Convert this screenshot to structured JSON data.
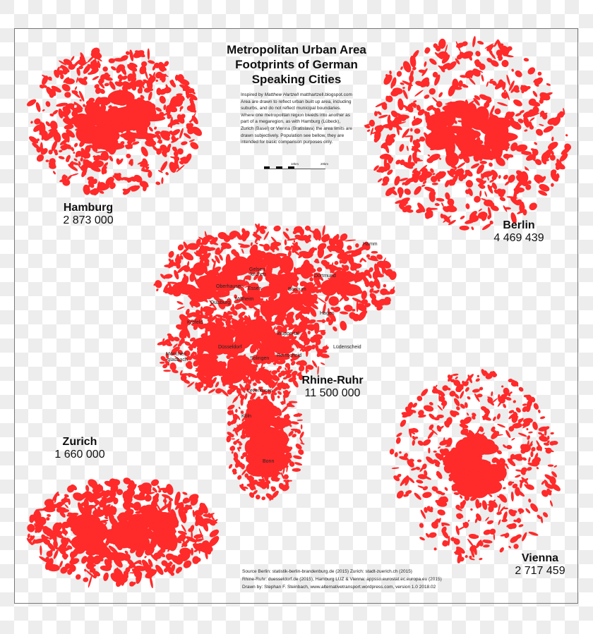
{
  "title": [
    "Metropolitan Urban Area",
    "Footprints of German",
    "Speaking Cities"
  ],
  "description": {
    "inspired_prefix": "Inspired by ",
    "inspired_author": "Matthew Hartzell",
    "inspired_site": " matthartzell.blogspot.com",
    "lines": [
      "Area are drawn to reflect urban built up area, including",
      "suburbs, and do not reflect municipal boundaries.",
      "Where one metropolitan region bleeds into another as",
      "part of a megaregion, as with Hamburg (Lübeck),",
      "Zurich (Basel) or Vienna (Bratislava) the area limits are",
      "drawn subjectively. Population see bellow, they are",
      "intended for basic comparison purposes only."
    ]
  },
  "scale_bar": {
    "label_10": "10km",
    "label_20": "20km"
  },
  "regions": {
    "hamburg": {
      "name": "Hamburg",
      "population": "2 873 000"
    },
    "berlin": {
      "name": "Berlin",
      "population": "4 469 439"
    },
    "rhine_ruhr": {
      "name": "Rhine-Ruhr",
      "population": "11 500 000"
    },
    "zurich": {
      "name": "Zurich",
      "population": "1 660 000"
    },
    "vienna": {
      "name": "Vienna",
      "population": "2 717 459"
    }
  },
  "rhine_ruhr_cities": [
    "Hamm",
    "Gelsen",
    "-kirchen",
    "Dortmund",
    "Oberhausen",
    "Essen",
    "Bochum",
    "Duisburg",
    "Mülheim",
    "Hagen",
    "Krefeld",
    "Wuppertal",
    "Lüdenscheid",
    "Düsseldorf",
    "Mönchen",
    "-gladbach",
    "Solingen",
    "Remscheid",
    "Leverkusen",
    "Köln",
    "Bonn"
  ],
  "sources": [
    "Source Berlin: statistik-berlin-brandenburg.de (2015) Zurich: stadt-zuerich.ch (2015)",
    "Rhine-Ruhr: duesseldorf.de (2015), Hamburg LUZ & Vienna: appsso.eurostat.ec.europa.eu (2015)",
    "Drawn by: Stephan F. Steinbach, www.alternativetransport.wordpress.com, version 1.0 2018.02"
  ],
  "colors": {
    "urban_area": "#ff2a2a",
    "frame": "#777777"
  }
}
